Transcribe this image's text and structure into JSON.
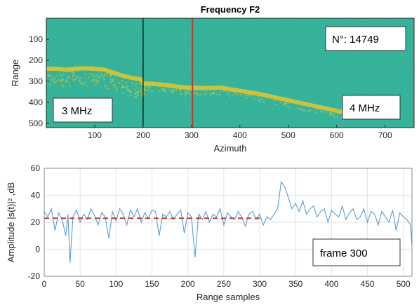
{
  "chart_data": [
    {
      "type": "heatmap",
      "title": "Frequency F2",
      "xlabel": "Azimuth",
      "ylabel": "Range",
      "xlim": [
        0,
        760
      ],
      "ylim": [
        520,
        0
      ],
      "x_ticks": [
        100,
        200,
        300,
        400,
        500,
        600,
        700
      ],
      "y_ticks": [
        100,
        200,
        300,
        400,
        500
      ],
      "background_color": "#27a98a",
      "echo_color": "#e9c62c",
      "echo_trace": {
        "azimuth": [
          0,
          20,
          40,
          60,
          80,
          100,
          120,
          140,
          160,
          180,
          195,
          200,
          220,
          250,
          280,
          300,
          330,
          360,
          400,
          440,
          480,
          520,
          560,
          600,
          620
        ],
        "range": [
          240,
          240,
          245,
          240,
          238,
          240,
          245,
          260,
          275,
          285,
          290,
          310,
          312,
          318,
          328,
          330,
          332,
          330,
          345,
          360,
          380,
          400,
          420,
          440,
          450
        ]
      },
      "vertical_lines": [
        {
          "azimuth": 200,
          "color": "#000000"
        },
        {
          "azimuth": 302,
          "color": "#c0392b"
        }
      ],
      "annotations": [
        {
          "text": "N°: 14749"
        },
        {
          "text": "3 MHz"
        },
        {
          "text": "4 MHz"
        }
      ]
    },
    {
      "type": "line",
      "title": "",
      "xlabel": "Range samples",
      "ylabel": "Amplitude |s(t)|² ,dB",
      "xlim": [
        0,
        512
      ],
      "ylim": [
        -20,
        60
      ],
      "x_ticks": [
        0,
        50,
        100,
        150,
        200,
        250,
        300,
        350,
        400,
        450,
        500
      ],
      "y_ticks": [
        -20,
        0,
        20,
        40,
        60
      ],
      "grid": true,
      "line_color": "#5b9bd5",
      "series": [
        {
          "x": [
            0,
            5,
            10,
            15,
            20,
            25,
            30,
            33,
            36,
            40,
            45,
            50,
            55,
            60,
            65,
            70,
            75,
            80,
            85,
            90,
            95,
            100,
            105,
            110,
            115,
            120,
            125,
            130,
            135,
            140,
            145,
            150,
            155,
            160,
            165,
            170,
            175,
            180,
            185,
            190,
            195,
            200,
            205,
            210,
            215,
            220,
            225,
            230,
            235,
            240,
            245,
            250,
            255,
            260,
            265,
            270,
            275,
            280,
            285,
            290,
            295,
            300,
            305,
            310,
            315,
            320,
            325,
            330,
            335,
            340,
            345,
            350,
            355,
            360,
            365,
            370,
            375,
            380,
            385,
            390,
            395,
            400,
            405,
            410,
            415,
            420,
            425,
            430,
            435,
            440,
            445,
            450,
            455,
            460,
            465,
            470,
            475,
            480,
            485,
            490,
            495,
            500,
            505,
            510,
            512
          ],
          "y": [
            28,
            24,
            30,
            14,
            27,
            22,
            10,
            26,
            -10,
            24,
            29,
            20,
            26,
            22,
            30,
            25,
            18,
            27,
            24,
            8,
            28,
            21,
            30,
            26,
            18,
            29,
            24,
            30,
            20,
            27,
            23,
            29,
            28,
            10,
            26,
            24,
            28,
            22,
            26,
            29,
            12,
            27,
            24,
            -6,
            26,
            22,
            28,
            20,
            26,
            24,
            30,
            18,
            27,
            24,
            22,
            28,
            24,
            17,
            26,
            28,
            22,
            26,
            18,
            24,
            22,
            26,
            30,
            50,
            46,
            38,
            30,
            34,
            28,
            36,
            26,
            30,
            32,
            24,
            28,
            30,
            20,
            29,
            26,
            24,
            32,
            22,
            27,
            30,
            22,
            24,
            30,
            20,
            28,
            26,
            18,
            28,
            24,
            20,
            29,
            14,
            27,
            24,
            22,
            18,
            2
          ]
        }
      ],
      "reference_line": {
        "value": 23,
        "x_start": 0,
        "x_end": 300,
        "color": "#c0392b",
        "style": "dashed"
      },
      "annotations": [
        {
          "text": "frame 300"
        }
      ]
    }
  ]
}
